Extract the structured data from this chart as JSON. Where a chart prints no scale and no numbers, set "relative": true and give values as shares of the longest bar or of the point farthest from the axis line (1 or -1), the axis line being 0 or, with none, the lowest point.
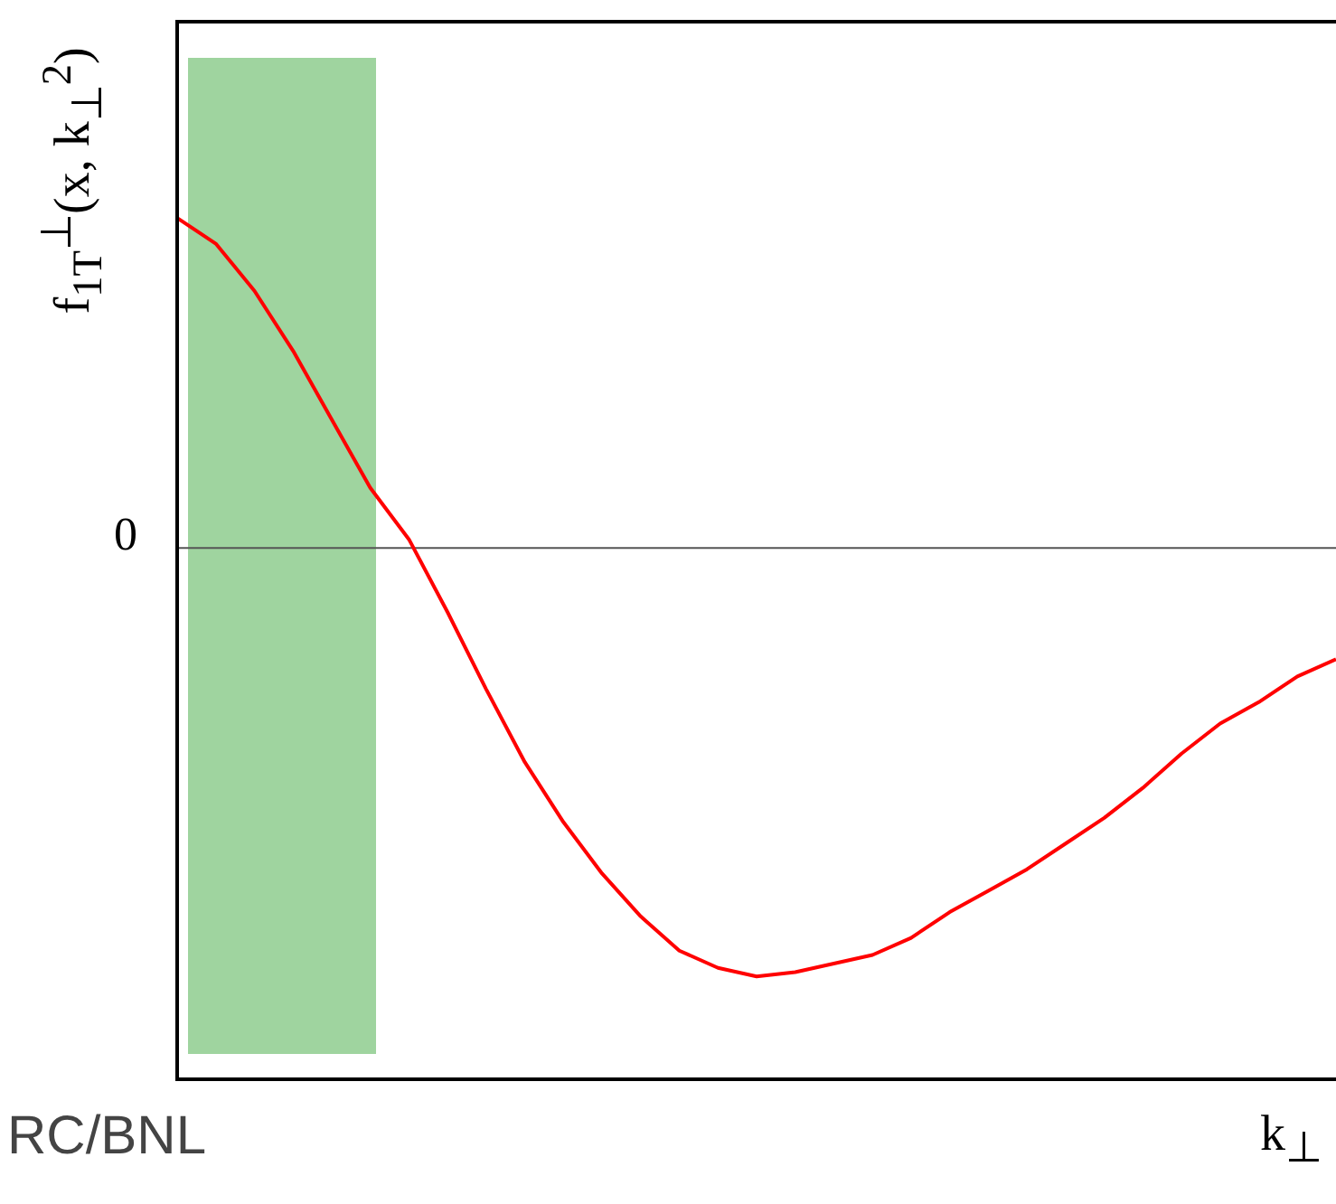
{
  "chart_data": {
    "type": "line",
    "relative": true,
    "ylabel": "f$_{1T}$$^{⊥}$(x, k$_{⊥}$$^{2}$)",
    "xlabel": "k$_{⊥}$",
    "annotations": [
      "RC/BNL",
      "0"
    ],
    "categories": [
      null,
      null,
      null,
      null,
      null,
      null,
      null,
      null,
      null,
      null,
      null,
      null,
      null,
      null,
      null,
      null,
      null,
      null,
      null,
      null,
      null,
      null,
      null,
      null,
      null,
      null,
      null,
      null,
      null,
      null,
      null
    ],
    "series": [
      {
        "color": "#ff0000",
        "values": [
          0.77,
          0.71,
          0.6,
          0.46,
          0.3,
          0.14,
          0.02,
          -0.15,
          -0.33,
          -0.5,
          -0.64,
          -0.76,
          -0.86,
          -0.94,
          -0.98,
          -1,
          -0.99,
          -0.97,
          -0.95,
          -0.91,
          -0.85,
          -0.8,
          -0.75,
          -0.69,
          -0.63,
          -0.56,
          -0.48,
          -0.41,
          -0.36,
          -0.3,
          -0.26
        ]
      }
    ]
  }
}
